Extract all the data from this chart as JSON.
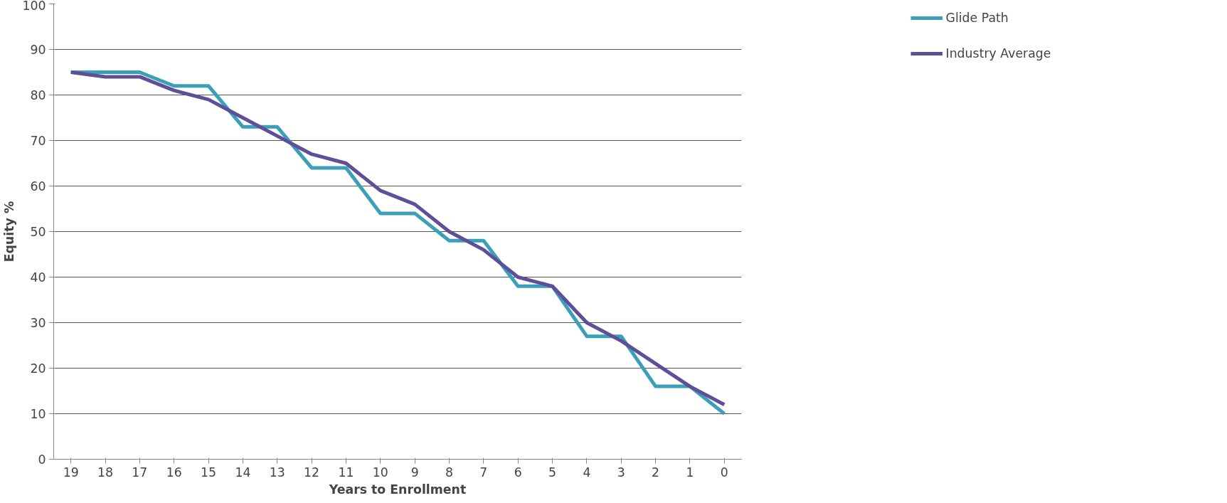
{
  "chart_data": {
    "type": "line",
    "xlabel": "Years to Enrollment",
    "ylabel": "Equity %",
    "categories": [
      "19",
      "18",
      "17",
      "16",
      "15",
      "14",
      "13",
      "12",
      "11",
      "10",
      "9",
      "8",
      "7",
      "6",
      "5",
      "4",
      "3",
      "2",
      "1",
      "0"
    ],
    "series": [
      {
        "name": "Glide Path",
        "color": "#3a9fb8",
        "values": [
          85,
          85,
          85,
          82,
          82,
          73,
          73,
          64,
          64,
          54,
          54,
          48,
          48,
          38,
          38,
          27,
          27,
          16,
          16,
          10
        ]
      },
      {
        "name": "Industry Average",
        "color": "#5f4f98",
        "values": [
          85,
          84,
          84,
          81,
          79,
          75,
          71,
          67,
          65,
          59,
          56,
          50,
          46,
          40,
          38,
          30,
          26,
          21,
          16,
          12
        ]
      }
    ],
    "ylim": [
      0,
      100
    ],
    "yticks": [
      0,
      10,
      20,
      30,
      40,
      50,
      60,
      70,
      80,
      90,
      100
    ],
    "grid": "y",
    "legend": "top right",
    "marker": "none",
    "line_style": "solid"
  }
}
